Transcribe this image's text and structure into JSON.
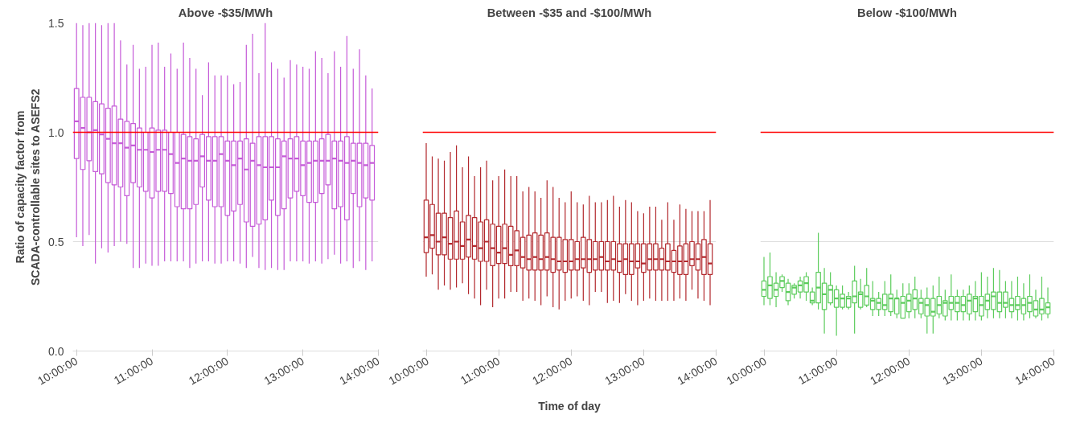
{
  "chart_data": [
    {
      "type": "box",
      "title": "Above -$35/MWh",
      "ylabel": "Ratio of capacity factor from\nSCADA-controllable sites to ASEFS2",
      "color": "#c55ad8",
      "grid": "y",
      "xlim": [
        9.95,
        14.0
      ],
      "ylim": [
        0,
        1.5
      ],
      "xticks": [
        {
          "value": 10,
          "label": "10:00:00"
        },
        {
          "value": 11,
          "label": "11:00:00"
        },
        {
          "value": 12,
          "label": "12:00:00"
        },
        {
          "value": 13,
          "label": "13:00:00"
        },
        {
          "value": 14,
          "label": "14:00:00"
        }
      ],
      "yticks": [
        {
          "value": 0,
          "label": "0.0"
        },
        0.5,
        {
          "value": 1,
          "label": "1.0"
        },
        1.5
      ],
      "ref_lines": [
        {
          "axis": "y",
          "value": 1,
          "color": "#ff0000"
        }
      ],
      "x": [
        10,
        10.083,
        10.167,
        10.25,
        10.333,
        10.417,
        10.5,
        10.583,
        10.667,
        10.75,
        10.833,
        10.917,
        11,
        11.083,
        11.167,
        11.25,
        11.333,
        11.417,
        11.5,
        11.583,
        11.667,
        11.75,
        11.833,
        11.917,
        12,
        12.083,
        12.167,
        12.25,
        12.333,
        12.417,
        12.5,
        12.583,
        12.667,
        12.75,
        12.833,
        12.917,
        13,
        13.083,
        13.167,
        13.25,
        13.333,
        13.417,
        13.5,
        13.583,
        13.667,
        13.75,
        13.833,
        13.917
      ],
      "boxes": [
        {
          "low": 0.52,
          "q1": 0.88,
          "median": 1.05,
          "q3": 1.2,
          "high": 1.5
        },
        {
          "low": 0.48,
          "q1": 0.83,
          "median": 1.02,
          "q3": 1.16,
          "high": 1.49
        },
        {
          "low": 0.53,
          "q1": 0.87,
          "median": 1.0,
          "q3": 1.16,
          "high": 1.5
        },
        {
          "low": 0.4,
          "q1": 0.82,
          "median": 1.01,
          "q3": 1.14,
          "high": 1.5
        },
        {
          "low": 0.47,
          "q1": 0.81,
          "median": 0.99,
          "q3": 1.13,
          "high": 1.49
        },
        {
          "low": 0.45,
          "q1": 0.77,
          "median": 0.97,
          "q3": 1.11,
          "high": 1.5
        },
        {
          "low": 0.48,
          "q1": 0.76,
          "median": 0.95,
          "q3": 1.12,
          "high": 1.5
        },
        {
          "low": 0.5,
          "q1": 0.75,
          "median": 0.95,
          "q3": 1.06,
          "high": 1.42
        },
        {
          "low": 0.49,
          "q1": 0.71,
          "median": 0.93,
          "q3": 1.05,
          "high": 1.31
        },
        {
          "low": 0.38,
          "q1": 0.77,
          "median": 0.94,
          "q3": 1.04,
          "high": 1.4
        },
        {
          "low": 0.38,
          "q1": 0.75,
          "median": 0.92,
          "q3": 1.02,
          "high": 1.29
        },
        {
          "low": 0.4,
          "q1": 0.73,
          "median": 0.92,
          "q3": 1.0,
          "high": 1.3
        },
        {
          "low": 0.39,
          "q1": 0.7,
          "median": 0.91,
          "q3": 1.02,
          "high": 1.4
        },
        {
          "low": 0.39,
          "q1": 0.73,
          "median": 0.92,
          "q3": 1.01,
          "high": 1.41
        },
        {
          "low": 0.41,
          "q1": 0.73,
          "median": 0.92,
          "q3": 1.01,
          "high": 1.3
        },
        {
          "low": 0.41,
          "q1": 0.72,
          "median": 0.9,
          "q3": 1.0,
          "high": 1.36
        },
        {
          "low": 0.41,
          "q1": 0.66,
          "median": 0.86,
          "q3": 1.0,
          "high": 1.29
        },
        {
          "low": 0.41,
          "q1": 0.65,
          "median": 0.88,
          "q3": 0.99,
          "high": 1.41
        },
        {
          "low": 0.38,
          "q1": 0.65,
          "median": 0.87,
          "q3": 0.98,
          "high": 1.34
        },
        {
          "low": 0.4,
          "q1": 0.67,
          "median": 0.87,
          "q3": 0.97,
          "high": 1.29
        },
        {
          "low": 0.41,
          "q1": 0.75,
          "median": 0.89,
          "q3": 0.99,
          "high": 1.17
        },
        {
          "low": 0.41,
          "q1": 0.69,
          "median": 0.87,
          "q3": 0.98,
          "high": 1.32
        },
        {
          "low": 0.4,
          "q1": 0.66,
          "median": 0.87,
          "q3": 0.98,
          "high": 1.26
        },
        {
          "low": 0.4,
          "q1": 0.66,
          "median": 0.9,
          "q3": 0.98,
          "high": 1.26
        },
        {
          "low": 0.41,
          "q1": 0.62,
          "median": 0.87,
          "q3": 0.96,
          "high": 1.26
        },
        {
          "low": 0.41,
          "q1": 0.64,
          "median": 0.85,
          "q3": 0.96,
          "high": 1.22
        },
        {
          "low": 0.4,
          "q1": 0.67,
          "median": 0.88,
          "q3": 0.96,
          "high": 1.23
        },
        {
          "low": 0.38,
          "q1": 0.59,
          "median": 0.83,
          "q3": 0.97,
          "high": 1.4
        },
        {
          "low": 0.43,
          "q1": 0.57,
          "median": 0.87,
          "q3": 0.95,
          "high": 1.45
        },
        {
          "low": 0.38,
          "q1": 0.58,
          "median": 0.85,
          "q3": 0.98,
          "high": 1.27
        },
        {
          "low": 0.37,
          "q1": 0.6,
          "median": 0.84,
          "q3": 0.98,
          "high": 1.5
        },
        {
          "low": 0.38,
          "q1": 0.69,
          "median": 0.84,
          "q3": 0.98,
          "high": 1.32
        },
        {
          "low": 0.37,
          "q1": 0.62,
          "median": 0.84,
          "q3": 0.97,
          "high": 1.29
        },
        {
          "low": 0.37,
          "q1": 0.65,
          "median": 0.89,
          "q3": 0.96,
          "high": 1.25
        },
        {
          "low": 0.41,
          "q1": 0.7,
          "median": 0.88,
          "q3": 0.97,
          "high": 1.33
        },
        {
          "low": 0.41,
          "q1": 0.73,
          "median": 0.88,
          "q3": 0.98,
          "high": 1.31
        },
        {
          "low": 0.41,
          "q1": 0.71,
          "median": 0.85,
          "q3": 0.96,
          "high": 1.3
        },
        {
          "low": 0.4,
          "q1": 0.68,
          "median": 0.86,
          "q3": 0.96,
          "high": 1.29
        },
        {
          "low": 0.41,
          "q1": 0.68,
          "median": 0.87,
          "q3": 0.96,
          "high": 1.37
        },
        {
          "low": 0.4,
          "q1": 0.72,
          "median": 0.87,
          "q3": 0.97,
          "high": 1.34
        },
        {
          "low": 0.42,
          "q1": 0.76,
          "median": 0.87,
          "q3": 0.99,
          "high": 1.27
        },
        {
          "low": 0.44,
          "q1": 0.65,
          "median": 0.88,
          "q3": 0.96,
          "high": 1.37
        },
        {
          "low": 0.4,
          "q1": 0.66,
          "median": 0.87,
          "q3": 0.96,
          "high": 1.3
        },
        {
          "low": 0.41,
          "q1": 0.6,
          "median": 0.86,
          "q3": 0.98,
          "high": 1.44
        },
        {
          "low": 0.38,
          "q1": 0.72,
          "median": 0.87,
          "q3": 0.95,
          "high": 1.29
        },
        {
          "low": 0.41,
          "q1": 0.66,
          "median": 0.86,
          "q3": 0.95,
          "high": 1.38
        },
        {
          "low": 0.37,
          "q1": 0.7,
          "median": 0.85,
          "q3": 0.95,
          "high": 1.26
        },
        {
          "low": 0.41,
          "q1": 0.69,
          "median": 0.86,
          "q3": 0.94,
          "high": 1.2
        }
      ]
    },
    {
      "type": "box",
      "title": "Between -$35 and -$100/MWh",
      "xlabel": "Time of day",
      "color": "#b2282d",
      "grid": "y",
      "tick_labels": "x",
      "xlim": [
        9.95,
        14.0
      ],
      "ylim": [
        0,
        1.5
      ],
      "xticks": [
        {
          "value": 10,
          "label": "10:00:00"
        },
        {
          "value": 11,
          "label": "11:00:00"
        },
        {
          "value": 12,
          "label": "12:00:00"
        },
        {
          "value": 13,
          "label": "13:00:00"
        },
        {
          "value": 14,
          "label": "14:00:00"
        }
      ],
      "yticks": [
        0,
        0.5,
        1,
        1.5
      ],
      "ref_lines": [
        {
          "axis": "y",
          "value": 1,
          "color": "#ff0000"
        }
      ],
      "x": [
        10,
        10.083,
        10.167,
        10.25,
        10.333,
        10.417,
        10.5,
        10.583,
        10.667,
        10.75,
        10.833,
        10.917,
        11,
        11.083,
        11.167,
        11.25,
        11.333,
        11.417,
        11.5,
        11.583,
        11.667,
        11.75,
        11.833,
        11.917,
        12,
        12.083,
        12.167,
        12.25,
        12.333,
        12.417,
        12.5,
        12.583,
        12.667,
        12.75,
        12.833,
        12.917,
        13,
        13.083,
        13.167,
        13.25,
        13.333,
        13.417,
        13.5,
        13.583,
        13.667,
        13.75,
        13.833,
        13.917
      ],
      "boxes": [
        {
          "low": 0.34,
          "q1": 0.45,
          "median": 0.52,
          "q3": 0.69,
          "high": 0.95
        },
        {
          "low": 0.35,
          "q1": 0.47,
          "median": 0.53,
          "q3": 0.67,
          "high": 0.89
        },
        {
          "low": 0.28,
          "q1": 0.44,
          "median": 0.5,
          "q3": 0.63,
          "high": 0.88
        },
        {
          "low": 0.3,
          "q1": 0.44,
          "median": 0.52,
          "q3": 0.63,
          "high": 0.87
        },
        {
          "low": 0.28,
          "q1": 0.42,
          "median": 0.49,
          "q3": 0.61,
          "high": 0.91
        },
        {
          "low": 0.29,
          "q1": 0.42,
          "median": 0.5,
          "q3": 0.64,
          "high": 0.94
        },
        {
          "low": 0.31,
          "q1": 0.42,
          "median": 0.48,
          "q3": 0.59,
          "high": 0.84
        },
        {
          "low": 0.26,
          "q1": 0.43,
          "median": 0.51,
          "q3": 0.62,
          "high": 0.89
        },
        {
          "low": 0.24,
          "q1": 0.42,
          "median": 0.48,
          "q3": 0.61,
          "high": 0.8
        },
        {
          "low": 0.21,
          "q1": 0.41,
          "median": 0.47,
          "q3": 0.59,
          "high": 0.84
        },
        {
          "low": 0.28,
          "q1": 0.41,
          "median": 0.5,
          "q3": 0.6,
          "high": 0.87
        },
        {
          "low": 0.2,
          "q1": 0.39,
          "median": 0.47,
          "q3": 0.58,
          "high": 0.78
        },
        {
          "low": 0.24,
          "q1": 0.4,
          "median": 0.45,
          "q3": 0.57,
          "high": 0.8
        },
        {
          "low": 0.24,
          "q1": 0.4,
          "median": 0.47,
          "q3": 0.58,
          "high": 0.83
        },
        {
          "low": 0.27,
          "q1": 0.39,
          "median": 0.44,
          "q3": 0.57,
          "high": 0.8
        },
        {
          "low": 0.27,
          "q1": 0.39,
          "median": 0.46,
          "q3": 0.55,
          "high": 0.8
        },
        {
          "low": 0.23,
          "q1": 0.38,
          "median": 0.43,
          "q3": 0.52,
          "high": 0.73
        },
        {
          "low": 0.24,
          "q1": 0.37,
          "median": 0.42,
          "q3": 0.53,
          "high": 0.75
        },
        {
          "low": 0.23,
          "q1": 0.37,
          "median": 0.43,
          "q3": 0.54,
          "high": 0.73
        },
        {
          "low": 0.21,
          "q1": 0.37,
          "median": 0.42,
          "q3": 0.53,
          "high": 0.7
        },
        {
          "low": 0.25,
          "q1": 0.37,
          "median": 0.43,
          "q3": 0.54,
          "high": 0.78
        },
        {
          "low": 0.2,
          "q1": 0.36,
          "median": 0.42,
          "q3": 0.52,
          "high": 0.75
        },
        {
          "low": 0.19,
          "q1": 0.37,
          "median": 0.41,
          "q3": 0.52,
          "high": 0.7
        },
        {
          "low": 0.23,
          "q1": 0.36,
          "median": 0.41,
          "q3": 0.51,
          "high": 0.68
        },
        {
          "low": 0.24,
          "q1": 0.37,
          "median": 0.41,
          "q3": 0.51,
          "high": 0.73
        },
        {
          "low": 0.25,
          "q1": 0.37,
          "median": 0.42,
          "q3": 0.5,
          "high": 0.68
        },
        {
          "low": 0.23,
          "q1": 0.38,
          "median": 0.42,
          "q3": 0.52,
          "high": 0.67
        },
        {
          "low": 0.21,
          "q1": 0.36,
          "median": 0.42,
          "q3": 0.51,
          "high": 0.71
        },
        {
          "low": 0.27,
          "q1": 0.37,
          "median": 0.42,
          "q3": 0.5,
          "high": 0.68
        },
        {
          "low": 0.27,
          "q1": 0.37,
          "median": 0.43,
          "q3": 0.5,
          "high": 0.68
        },
        {
          "low": 0.22,
          "q1": 0.37,
          "median": 0.41,
          "q3": 0.5,
          "high": 0.69
        },
        {
          "low": 0.23,
          "q1": 0.37,
          "median": 0.42,
          "q3": 0.5,
          "high": 0.71
        },
        {
          "low": 0.22,
          "q1": 0.36,
          "median": 0.41,
          "q3": 0.49,
          "high": 0.66
        },
        {
          "low": 0.26,
          "q1": 0.35,
          "median": 0.42,
          "q3": 0.49,
          "high": 0.69
        },
        {
          "low": 0.23,
          "q1": 0.35,
          "median": 0.41,
          "q3": 0.49,
          "high": 0.68
        },
        {
          "low": 0.21,
          "q1": 0.38,
          "median": 0.41,
          "q3": 0.49,
          "high": 0.64
        },
        {
          "low": 0.23,
          "q1": 0.36,
          "median": 0.4,
          "q3": 0.49,
          "high": 0.63
        },
        {
          "low": 0.24,
          "q1": 0.37,
          "median": 0.42,
          "q3": 0.49,
          "high": 0.66
        },
        {
          "low": 0.23,
          "q1": 0.37,
          "median": 0.42,
          "q3": 0.49,
          "high": 0.66
        },
        {
          "low": 0.23,
          "q1": 0.37,
          "median": 0.42,
          "q3": 0.47,
          "high": 0.6
        },
        {
          "low": 0.23,
          "q1": 0.37,
          "median": 0.41,
          "q3": 0.49,
          "high": 0.68
        },
        {
          "low": 0.23,
          "q1": 0.36,
          "median": 0.41,
          "q3": 0.46,
          "high": 0.6
        },
        {
          "low": 0.24,
          "q1": 0.35,
          "median": 0.41,
          "q3": 0.48,
          "high": 0.67
        },
        {
          "low": 0.23,
          "q1": 0.35,
          "median": 0.41,
          "q3": 0.49,
          "high": 0.65
        },
        {
          "low": 0.28,
          "q1": 0.39,
          "median": 0.42,
          "q3": 0.5,
          "high": 0.64
        },
        {
          "low": 0.24,
          "q1": 0.37,
          "median": 0.42,
          "q3": 0.49,
          "high": 0.64
        },
        {
          "low": 0.23,
          "q1": 0.35,
          "median": 0.43,
          "q3": 0.51,
          "high": 0.64
        },
        {
          "low": 0.21,
          "q1": 0.35,
          "median": 0.4,
          "q3": 0.49,
          "high": 0.69
        }
      ]
    },
    {
      "type": "box",
      "title": "Below -$100/MWh",
      "color": "#5ccc5c",
      "grid": "y",
      "tick_labels": "x",
      "xlim": [
        9.95,
        14.0
      ],
      "ylim": [
        0,
        1.5
      ],
      "xticks": [
        {
          "value": 10,
          "label": "10:00:00"
        },
        {
          "value": 11,
          "label": "11:00:00"
        },
        {
          "value": 12,
          "label": "12:00:00"
        },
        {
          "value": 13,
          "label": "13:00:00"
        },
        {
          "value": 14,
          "label": "14:00:00"
        }
      ],
      "yticks": [
        0,
        0.5,
        1,
        1.5
      ],
      "ref_lines": [
        {
          "axis": "y",
          "value": 1,
          "color": "#ff0000"
        }
      ],
      "x": [
        10,
        10.083,
        10.167,
        10.25,
        10.333,
        10.417,
        10.5,
        10.583,
        10.667,
        10.75,
        10.833,
        10.917,
        11,
        11.083,
        11.167,
        11.25,
        11.333,
        11.417,
        11.5,
        11.583,
        11.667,
        11.75,
        11.833,
        11.917,
        12,
        12.083,
        12.167,
        12.25,
        12.333,
        12.417,
        12.5,
        12.583,
        12.667,
        12.75,
        12.833,
        12.917,
        13,
        13.083,
        13.167,
        13.25,
        13.333,
        13.417,
        13.5,
        13.583,
        13.667,
        13.75,
        13.833,
        13.917
      ],
      "boxes": [
        {
          "low": 0.21,
          "q1": 0.25,
          "median": 0.28,
          "q3": 0.32,
          "high": 0.43
        },
        {
          "low": 0.21,
          "q1": 0.24,
          "median": 0.3,
          "q3": 0.34,
          "high": 0.45
        },
        {
          "low": 0.2,
          "q1": 0.25,
          "median": 0.28,
          "q3": 0.31,
          "high": 0.36
        },
        {
          "low": 0.27,
          "q1": 0.29,
          "median": 0.32,
          "q3": 0.34,
          "high": 0.35
        },
        {
          "low": 0.21,
          "q1": 0.23,
          "median": 0.27,
          "q3": 0.31,
          "high": 0.33
        },
        {
          "low": 0.24,
          "q1": 0.26,
          "median": 0.29,
          "q3": 0.3,
          "high": 0.31
        },
        {
          "low": 0.24,
          "q1": 0.27,
          "median": 0.3,
          "q3": 0.32,
          "high": 0.34
        },
        {
          "low": 0.23,
          "q1": 0.27,
          "median": 0.31,
          "q3": 0.34,
          "high": 0.36
        },
        {
          "low": 0.21,
          "q1": 0.22,
          "median": 0.23,
          "q3": 0.27,
          "high": 0.29
        },
        {
          "low": 0.19,
          "q1": 0.22,
          "median": 0.29,
          "q3": 0.36,
          "high": 0.54
        },
        {
          "low": 0.08,
          "q1": 0.19,
          "median": 0.26,
          "q3": 0.31,
          "high": 0.38
        },
        {
          "low": 0.21,
          "q1": 0.22,
          "median": 0.28,
          "q3": 0.3,
          "high": 0.36
        },
        {
          "low": 0.07,
          "q1": 0.2,
          "median": 0.24,
          "q3": 0.28,
          "high": 0.3
        },
        {
          "low": 0.19,
          "q1": 0.2,
          "median": 0.24,
          "q3": 0.26,
          "high": 0.3
        },
        {
          "low": 0.19,
          "q1": 0.2,
          "median": 0.24,
          "q3": 0.25,
          "high": 0.27
        },
        {
          "low": 0.08,
          "q1": 0.22,
          "median": 0.25,
          "q3": 0.32,
          "high": 0.39
        },
        {
          "low": 0.19,
          "q1": 0.2,
          "median": 0.26,
          "q3": 0.27,
          "high": 0.33
        },
        {
          "low": 0.2,
          "q1": 0.21,
          "median": 0.25,
          "q3": 0.3,
          "high": 0.38
        },
        {
          "low": 0.16,
          "q1": 0.19,
          "median": 0.23,
          "q3": 0.24,
          "high": 0.32
        },
        {
          "low": 0.16,
          "q1": 0.19,
          "median": 0.22,
          "q3": 0.24,
          "high": 0.27
        },
        {
          "low": 0.16,
          "q1": 0.19,
          "median": 0.21,
          "q3": 0.26,
          "high": 0.32
        },
        {
          "low": 0.16,
          "q1": 0.18,
          "median": 0.24,
          "q3": 0.26,
          "high": 0.35
        },
        {
          "low": 0.15,
          "q1": 0.17,
          "median": 0.24,
          "q3": 0.24,
          "high": 0.28
        },
        {
          "low": 0.15,
          "q1": 0.15,
          "median": 0.22,
          "q3": 0.25,
          "high": 0.31
        },
        {
          "low": 0.15,
          "q1": 0.18,
          "median": 0.23,
          "q3": 0.26,
          "high": 0.31
        },
        {
          "low": 0.15,
          "q1": 0.19,
          "median": 0.24,
          "q3": 0.28,
          "high": 0.34
        },
        {
          "low": 0.15,
          "q1": 0.17,
          "median": 0.22,
          "q3": 0.24,
          "high": 0.28
        },
        {
          "low": 0.08,
          "q1": 0.16,
          "median": 0.21,
          "q3": 0.24,
          "high": 0.29
        },
        {
          "low": 0.08,
          "q1": 0.16,
          "median": 0.18,
          "q3": 0.24,
          "high": 0.3
        },
        {
          "low": 0.15,
          "q1": 0.17,
          "median": 0.21,
          "q3": 0.25,
          "high": 0.34
        },
        {
          "low": 0.14,
          "q1": 0.16,
          "median": 0.22,
          "q3": 0.23,
          "high": 0.28
        },
        {
          "low": 0.14,
          "q1": 0.19,
          "median": 0.22,
          "q3": 0.25,
          "high": 0.35
        },
        {
          "low": 0.14,
          "q1": 0.18,
          "median": 0.22,
          "q3": 0.25,
          "high": 0.28
        },
        {
          "low": 0.14,
          "q1": 0.18,
          "median": 0.21,
          "q3": 0.25,
          "high": 0.28
        },
        {
          "low": 0.14,
          "q1": 0.17,
          "median": 0.23,
          "q3": 0.26,
          "high": 0.3
        },
        {
          "low": 0.14,
          "q1": 0.18,
          "median": 0.24,
          "q3": 0.25,
          "high": 0.32
        },
        {
          "low": 0.14,
          "q1": 0.16,
          "median": 0.21,
          "q3": 0.25,
          "high": 0.36
        },
        {
          "low": 0.15,
          "q1": 0.19,
          "median": 0.23,
          "q3": 0.26,
          "high": 0.34
        },
        {
          "low": 0.15,
          "q1": 0.19,
          "median": 0.25,
          "q3": 0.27,
          "high": 0.38
        },
        {
          "low": 0.15,
          "q1": 0.18,
          "median": 0.22,
          "q3": 0.27,
          "high": 0.37
        },
        {
          "low": 0.15,
          "q1": 0.2,
          "median": 0.22,
          "q3": 0.27,
          "high": 0.32
        },
        {
          "low": 0.15,
          "q1": 0.18,
          "median": 0.21,
          "q3": 0.24,
          "high": 0.32
        },
        {
          "low": 0.14,
          "q1": 0.19,
          "median": 0.21,
          "q3": 0.25,
          "high": 0.34
        },
        {
          "low": 0.14,
          "q1": 0.17,
          "median": 0.21,
          "q3": 0.24,
          "high": 0.31
        },
        {
          "low": 0.15,
          "q1": 0.18,
          "median": 0.22,
          "q3": 0.25,
          "high": 0.35
        },
        {
          "low": 0.15,
          "q1": 0.16,
          "median": 0.19,
          "q3": 0.23,
          "high": 0.28
        },
        {
          "low": 0.14,
          "q1": 0.17,
          "median": 0.19,
          "q3": 0.24,
          "high": 0.34
        },
        {
          "low": 0.15,
          "q1": 0.17,
          "median": 0.2,
          "q3": 0.22,
          "high": 0.29
        }
      ]
    }
  ]
}
